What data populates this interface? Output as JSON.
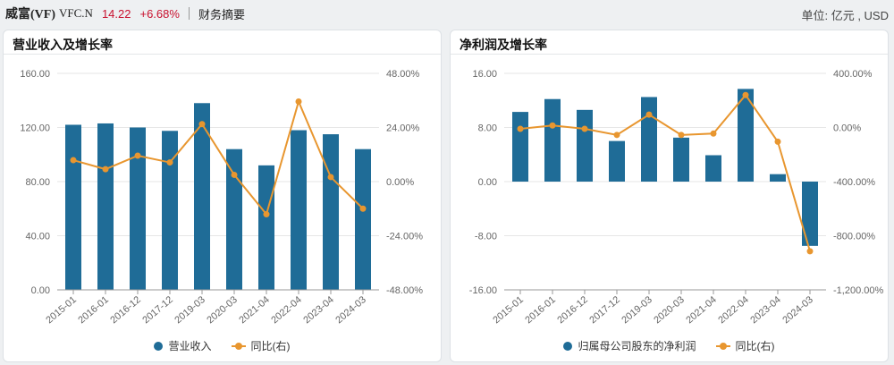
{
  "header": {
    "company": "威富(VF)",
    "ticker": "VFC.N",
    "price": "14.22",
    "change": "+6.68%",
    "section": "财务摘要",
    "unit": "单位: 亿元 , USD"
  },
  "colors": {
    "bar": "#1f6c97",
    "line": "#e8962f",
    "grid": "#e6e6e6",
    "price_up": "#c8102e"
  },
  "chart_data": [
    {
      "type": "bar",
      "title": "营业收入及增长率",
      "categories": [
        "2015-01",
        "2016-01",
        "2016-12",
        "2017-12",
        "2019-03",
        "2020-03",
        "2021-04",
        "2022-04",
        "2023-04",
        "2024-03"
      ],
      "series": [
        {
          "name": "营业收入",
          "type": "bar",
          "axis": "left",
          "values": [
            122,
            123,
            120,
            117.5,
            138,
            104,
            92,
            118,
            115,
            104
          ]
        },
        {
          "name": "同比(右)",
          "type": "line",
          "axis": "right",
          "values": [
            9.5,
            5.5,
            11.5,
            8.5,
            25.5,
            3,
            -14.5,
            35.5,
            2,
            -12
          ]
        }
      ],
      "left_axis": {
        "ylim": [
          0,
          160
        ],
        "ticks": [
          "0.00",
          "40.00",
          "80.00",
          "120.00",
          "160.00"
        ]
      },
      "right_axis": {
        "ylim": [
          -48,
          48
        ],
        "ticks": [
          "-48.00%",
          "-24.00%",
          "0.00%",
          "24.00%",
          "48.00%"
        ]
      },
      "grid": true,
      "legend": "bottom-center"
    },
    {
      "type": "bar",
      "title": "净利润及增长率",
      "categories": [
        "2015-01",
        "2016-01",
        "2016-12",
        "2017-12",
        "2019-03",
        "2020-03",
        "2021-04",
        "2022-04",
        "2023-04",
        "2024-03"
      ],
      "series": [
        {
          "name": "归属母公司股东的净利润",
          "type": "bar",
          "axis": "left",
          "values": [
            10.3,
            12.2,
            10.6,
            6.0,
            12.5,
            6.5,
            3.9,
            13.7,
            1.1,
            -9.5
          ]
        },
        {
          "name": "同比(右)",
          "type": "line",
          "axis": "right",
          "values": [
            -10,
            15,
            -10,
            -55,
            95,
            -55,
            -45,
            240,
            -105,
            -915
          ]
        }
      ],
      "left_axis": {
        "ylim": [
          -16,
          16
        ],
        "ticks": [
          "-16.00",
          "-8.00",
          "0.00",
          "8.00",
          "16.00"
        ]
      },
      "right_axis": {
        "ylim": [
          -1200,
          400
        ],
        "ticks": [
          "-1,200.00%",
          "-800.00%",
          "-400.00%",
          "0.00%",
          "400.00%"
        ]
      },
      "grid": true,
      "legend": "bottom-center"
    }
  ]
}
